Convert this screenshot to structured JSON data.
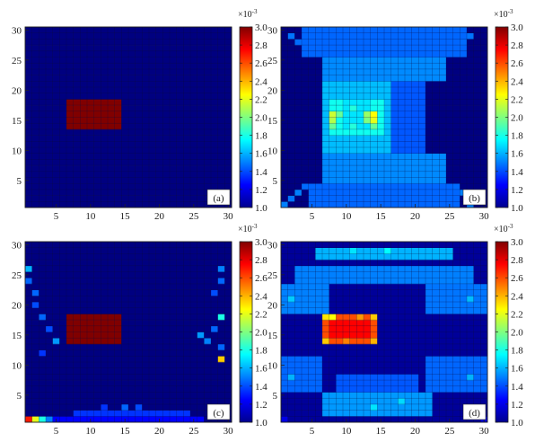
{
  "chart_data": [
    {
      "type": "heatmap",
      "panel_label": "(a)",
      "x_ticks": [
        5,
        10,
        15,
        20,
        25,
        30
      ],
      "y_ticks": [
        5,
        10,
        15,
        20,
        25,
        30
      ],
      "xlim": [
        0.5,
        30.5
      ],
      "ylim": [
        0.5,
        30.5
      ],
      "grid": true,
      "colorbar": {
        "multiplier": "×10",
        "exponent": "-3",
        "range": [
          1.0,
          3.0
        ],
        "ticks": [
          "1.0",
          "1.2",
          "1.4",
          "1.6",
          "1.8",
          "2.0",
          "2.2",
          "2.4",
          "2.6",
          "2.8",
          "3.0"
        ]
      },
      "background_value": 1.0,
      "regions": [
        {
          "x": [
            7,
            14
          ],
          "y": [
            14,
            18
          ],
          "value": 3.0
        }
      ],
      "cells": []
    },
    {
      "type": "heatmap",
      "panel_label": "(b)",
      "x_ticks": [
        5,
        10,
        15,
        20,
        25,
        30
      ],
      "y_ticks": [
        5,
        10,
        15,
        20,
        25,
        30
      ],
      "xlim": [
        0.5,
        30.5
      ],
      "ylim": [
        0.5,
        30.5
      ],
      "grid": true,
      "colorbar": {
        "multiplier": "×10",
        "exponent": "-3",
        "range": [
          1.0,
          3.0
        ],
        "ticks": [
          "1.0",
          "1.2",
          "1.4",
          "1.6",
          "1.8",
          "2.0",
          "2.2",
          "2.4",
          "2.6",
          "2.8",
          "3.0"
        ]
      },
      "background_value": 1.0,
      "regions": [
        {
          "x": [
            10,
            21
          ],
          "y": [
            1,
            30
          ],
          "value": 1.42
        },
        {
          "x": [
            5,
            26
          ],
          "y": [
            1,
            4
          ],
          "value": 1.45
        },
        {
          "x": [
            4,
            27
          ],
          "y": [
            26,
            30
          ],
          "value": 1.45
        },
        {
          "x": [
            7,
            24
          ],
          "y": [
            5,
            9
          ],
          "value": 1.52
        },
        {
          "x": [
            7,
            24
          ],
          "y": [
            22,
            25
          ],
          "value": 1.52
        },
        {
          "x": [
            7,
            16
          ],
          "y": [
            10,
            21
          ],
          "value": 1.62
        },
        {
          "x": [
            8,
            15
          ],
          "y": [
            13,
            18
          ],
          "value": 1.78
        },
        {
          "x": [
            10,
            13
          ],
          "y": [
            14,
            18
          ],
          "value": 1.7
        }
      ],
      "cells": [
        {
          "x": 1,
          "y": 1,
          "value": 1.5
        },
        {
          "x": 2,
          "y": 2,
          "value": 1.48
        },
        {
          "x": 3,
          "y": 3,
          "value": 1.5
        },
        {
          "x": 4,
          "y": 4,
          "value": 1.46
        },
        {
          "x": 28,
          "y": 1,
          "value": 1.5
        },
        {
          "x": 29,
          "y": 2,
          "value": 1.48
        },
        {
          "x": 27,
          "y": 3,
          "value": 1.5
        },
        {
          "x": 26,
          "y": 4,
          "value": 1.46
        },
        {
          "x": 2,
          "y": 29,
          "value": 1.48
        },
        {
          "x": 3,
          "y": 28,
          "value": 1.46
        },
        {
          "x": 28,
          "y": 29,
          "value": 1.48
        },
        {
          "x": 27,
          "y": 28,
          "value": 1.46
        },
        {
          "x": 8,
          "y": 15,
          "value": 2.1
        },
        {
          "x": 8,
          "y": 16,
          "value": 2.15
        },
        {
          "x": 8,
          "y": 14,
          "value": 1.95
        },
        {
          "x": 9,
          "y": 16,
          "value": 1.95
        },
        {
          "x": 14,
          "y": 15,
          "value": 2.2
        },
        {
          "x": 14,
          "y": 16,
          "value": 2.25
        },
        {
          "x": 13,
          "y": 16,
          "value": 2.05
        },
        {
          "x": 13,
          "y": 15,
          "value": 2.0
        },
        {
          "x": 14,
          "y": 14,
          "value": 1.95
        },
        {
          "x": 11,
          "y": 17,
          "value": 1.82
        },
        {
          "x": 11,
          "y": 14,
          "value": 1.82
        }
      ]
    },
    {
      "type": "heatmap",
      "panel_label": "(c)",
      "x_ticks": [
        5,
        10,
        15,
        20,
        25,
        30
      ],
      "y_ticks": [
        5,
        10,
        15,
        20,
        25,
        30
      ],
      "xlim": [
        0.5,
        30.5
      ],
      "ylim": [
        0.5,
        30.5
      ],
      "grid": true,
      "colorbar": {
        "multiplier": "×10",
        "exponent": "-3",
        "range": [
          1.0,
          3.0
        ],
        "ticks": [
          "1.0",
          "1.2",
          "1.4",
          "1.6",
          "1.8",
          "2.0",
          "2.2",
          "2.4",
          "2.6",
          "2.8",
          "3.0"
        ]
      },
      "background_value": 1.0,
      "regions": [
        {
          "x": [
            7,
            14
          ],
          "y": [
            14,
            18
          ],
          "value": 3.0
        },
        {
          "x": [
            8,
            24
          ],
          "y": [
            2,
            2
          ],
          "value": 1.35
        },
        {
          "x": [
            5,
            26
          ],
          "y": [
            1,
            1
          ],
          "value": 1.25
        }
      ],
      "cells": [
        {
          "x": 1,
          "y": 1,
          "value": 2.7
        },
        {
          "x": 2,
          "y": 1,
          "value": 2.2
        },
        {
          "x": 3,
          "y": 1,
          "value": 1.8
        },
        {
          "x": 4,
          "y": 1,
          "value": 1.5
        },
        {
          "x": 1,
          "y": 26,
          "value": 1.6
        },
        {
          "x": 1,
          "y": 24,
          "value": 1.45
        },
        {
          "x": 2,
          "y": 22,
          "value": 1.45
        },
        {
          "x": 2,
          "y": 20,
          "value": 1.4
        },
        {
          "x": 3,
          "y": 18,
          "value": 1.45
        },
        {
          "x": 4,
          "y": 16,
          "value": 1.4
        },
        {
          "x": 5,
          "y": 14,
          "value": 1.55
        },
        {
          "x": 3,
          "y": 12,
          "value": 1.35
        },
        {
          "x": 29,
          "y": 26,
          "value": 1.5
        },
        {
          "x": 29,
          "y": 24,
          "value": 1.45
        },
        {
          "x": 28,
          "y": 22,
          "value": 1.4
        },
        {
          "x": 29,
          "y": 18,
          "value": 1.8
        },
        {
          "x": 28,
          "y": 16,
          "value": 1.45
        },
        {
          "x": 26,
          "y": 15,
          "value": 1.55
        },
        {
          "x": 27,
          "y": 14,
          "value": 1.5
        },
        {
          "x": 29,
          "y": 11,
          "value": 2.35
        },
        {
          "x": 29,
          "y": 13,
          "value": 1.45
        },
        {
          "x": 15,
          "y": 3,
          "value": 1.45
        },
        {
          "x": 17,
          "y": 3,
          "value": 1.4
        },
        {
          "x": 12,
          "y": 3,
          "value": 1.35
        }
      ]
    },
    {
      "type": "heatmap",
      "panel_label": "(d)",
      "x_ticks": [
        5,
        10,
        15,
        20,
        25,
        30
      ],
      "y_ticks": [
        5,
        10,
        15,
        20,
        25,
        30
      ],
      "xlim": [
        0.5,
        30.5
      ],
      "ylim": [
        0.5,
        30.5
      ],
      "grid": true,
      "colorbar": {
        "multiplier": "×10",
        "exponent": "-3",
        "range": [
          1.0,
          3.0
        ],
        "ticks": [
          "1.0",
          "1.2",
          "1.4",
          "1.6",
          "1.8",
          "2.0",
          "2.2",
          "2.4",
          "2.6",
          "2.8",
          "3.0"
        ]
      },
      "background_value": 1.05,
      "regions": [
        {
          "x": [
            6,
            25
          ],
          "y": [
            28,
            29
          ],
          "value": 1.6
        },
        {
          "x": [
            3,
            28
          ],
          "y": [
            24,
            26
          ],
          "value": 1.5
        },
        {
          "x": [
            1,
            7
          ],
          "y": [
            19,
            23
          ],
          "value": 1.5
        },
        {
          "x": [
            22,
            30
          ],
          "y": [
            19,
            23
          ],
          "value": 1.48
        },
        {
          "x": [
            1,
            6
          ],
          "y": [
            6,
            11
          ],
          "value": 1.45
        },
        {
          "x": [
            22,
            30
          ],
          "y": [
            6,
            11
          ],
          "value": 1.45
        },
        {
          "x": [
            7,
            22
          ],
          "y": [
            2,
            5
          ],
          "value": 1.55
        },
        {
          "x": [
            9,
            20
          ],
          "y": [
            6,
            8
          ],
          "value": 1.42
        },
        {
          "x": [
            7,
            14
          ],
          "y": [
            14,
            18
          ],
          "value": 2.6
        },
        {
          "x": [
            8,
            13
          ],
          "y": [
            15,
            17
          ],
          "value": 2.75
        }
      ],
      "cells": [
        {
          "x": 7,
          "y": 18,
          "value": 2.3
        },
        {
          "x": 8,
          "y": 18,
          "value": 2.25
        },
        {
          "x": 14,
          "y": 18,
          "value": 2.35
        },
        {
          "x": 7,
          "y": 14,
          "value": 2.35
        },
        {
          "x": 14,
          "y": 14,
          "value": 2.4
        },
        {
          "x": 10,
          "y": 14,
          "value": 2.5
        },
        {
          "x": 12,
          "y": 18,
          "value": 2.45
        },
        {
          "x": 16,
          "y": 29,
          "value": 1.75
        },
        {
          "x": 11,
          "y": 29,
          "value": 1.7
        },
        {
          "x": 2,
          "y": 21,
          "value": 1.65
        },
        {
          "x": 28,
          "y": 21,
          "value": 1.62
        },
        {
          "x": 2,
          "y": 8,
          "value": 1.6
        },
        {
          "x": 28,
          "y": 8,
          "value": 1.6
        },
        {
          "x": 14,
          "y": 3,
          "value": 1.7
        },
        {
          "x": 18,
          "y": 4,
          "value": 1.68
        },
        {
          "x": 30,
          "y": 1,
          "value": 1.2
        },
        {
          "x": 1,
          "y": 1,
          "value": 1.2
        }
      ]
    }
  ]
}
